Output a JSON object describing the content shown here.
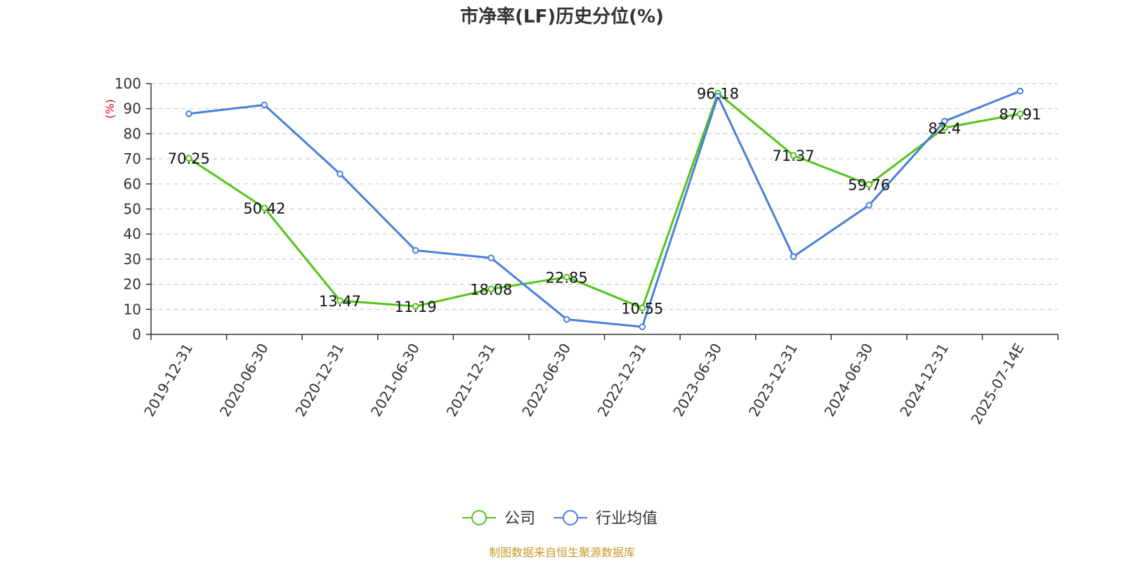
{
  "chart_data": {
    "type": "line",
    "title": "市净率(LF)历史分位(%)",
    "ylabel": "(%)",
    "ylim": [
      0,
      100
    ],
    "yticks": [
      0,
      10,
      20,
      30,
      40,
      50,
      60,
      70,
      80,
      90,
      100
    ],
    "grid": true,
    "legend_position": "bottom-center",
    "categories": [
      "2019-12-31",
      "2020-06-30",
      "2020-12-31",
      "2021-06-30",
      "2021-12-31",
      "2022-06-30",
      "2022-12-31",
      "2023-06-30",
      "2023-12-31",
      "2024-06-30",
      "2024-12-31",
      "2025-07-14E"
    ],
    "series": [
      {
        "name": "公司",
        "color": "#52c41a",
        "values": [
          70.25,
          50.42,
          13.47,
          11.19,
          18.08,
          22.85,
          10.55,
          96.18,
          71.37,
          59.76,
          82.4,
          87.91
        ],
        "labels": [
          "70.25",
          "50.42",
          "13.47",
          "11.19",
          "18.08",
          "22.85",
          "10.55",
          "96.18",
          "71.37",
          "59.76",
          "82.4",
          "87.91"
        ]
      },
      {
        "name": "行业均值",
        "color": "#4a7fdc",
        "values": [
          88,
          91.5,
          64,
          33.5,
          30.5,
          6,
          3,
          95,
          31,
          51.5,
          85,
          97
        ]
      }
    ],
    "source": "制图数据来自恒生聚源数据库",
    "colors": {
      "axis": "#333333",
      "grid": "#cccccc",
      "ylabel": "#e60012",
      "source": "#c79a2a"
    }
  }
}
